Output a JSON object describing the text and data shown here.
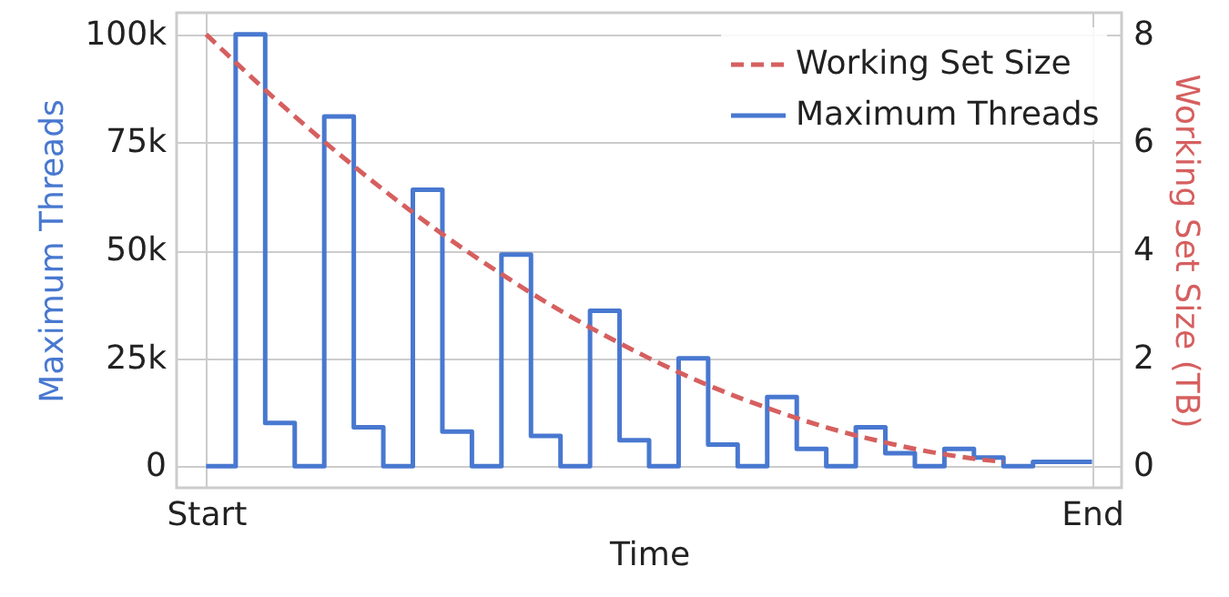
{
  "chart_data": {
    "type": "step",
    "xlabel": "Time",
    "ylabel": "Maximum Threads",
    "y2label": "Working Set Size (TB)",
    "categories": [
      "Start",
      null,
      null,
      null,
      null,
      null,
      null,
      null,
      null,
      null,
      null,
      null,
      null,
      null,
      null,
      null,
      null,
      null,
      null,
      null,
      null,
      null,
      null,
      null,
      null,
      null,
      null,
      null,
      null,
      null,
      "End"
    ],
    "ylim": [
      -5000,
      105000
    ],
    "yticks": [
      {
        "value": 0,
        "label": "0"
      },
      {
        "value": 25000,
        "label": "25k"
      },
      {
        "value": 50000,
        "label": "50k"
      },
      {
        "value": 75000,
        "label": "75k"
      },
      {
        "value": 100000,
        "label": "100k"
      }
    ],
    "y2lim": [
      -0.4,
      8.4
    ],
    "y2ticks": [
      0,
      2,
      4,
      6,
      8
    ],
    "grid": true,
    "legend": "top right",
    "series": [
      {
        "name": "Working Set Size",
        "type": "line",
        "axis": "y2",
        "color": "#d65f5f",
        "line_style": "dashed",
        "values": [
          8,
          7.48,
          6.97,
          6.48,
          6.01,
          5.56,
          5.12,
          4.7,
          4.3,
          3.92,
          3.56,
          3.21,
          2.88,
          2.57,
          2.28,
          2.0,
          1.74,
          1.5,
          1.28,
          1.08,
          0.89,
          0.72,
          0.57,
          0.44,
          0.32,
          0.22,
          0.14,
          0.08,
          null,
          null,
          null
        ]
      },
      {
        "name": "Maximum Threads",
        "axis": "y",
        "color": "#4878d0",
        "line_style": "solid",
        "values": [
          0,
          100000,
          10000,
          0,
          81000,
          9000,
          0,
          64000,
          8000,
          0,
          49000,
          7000,
          0,
          36000,
          6000,
          0,
          25000,
          5000,
          0,
          16000,
          4000,
          0,
          9000,
          3000,
          0,
          4000,
          2000,
          0,
          1000,
          1000,
          1000
        ]
      }
    ]
  }
}
